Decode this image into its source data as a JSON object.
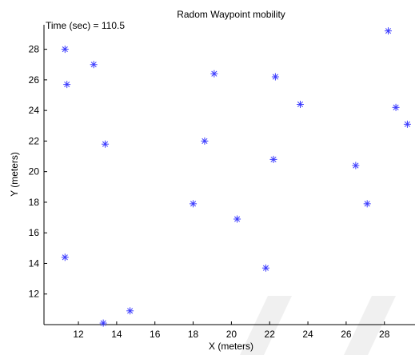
{
  "chart_data": {
    "type": "scatter",
    "title": "Radom Waypoint mobility",
    "annotation": "Time (sec) = 110.5",
    "xlabel": "X (meters)",
    "ylabel": "Y (meters)",
    "xlim": [
      10.2,
      29.6
    ],
    "ylim": [
      10.0,
      29.6
    ],
    "xticks": [
      "12",
      "14",
      "16",
      "18",
      "20",
      "22",
      "24",
      "26",
      "28"
    ],
    "yticks": [
      "12",
      "14",
      "16",
      "18",
      "20",
      "22",
      "24",
      "26",
      "28"
    ],
    "grid": false,
    "marker": "*",
    "marker_color": "#3b3bff",
    "points": [
      {
        "x": 11.3,
        "y": 28.0
      },
      {
        "x": 12.8,
        "y": 27.0
      },
      {
        "x": 11.4,
        "y": 25.7
      },
      {
        "x": 13.4,
        "y": 21.8
      },
      {
        "x": 11.3,
        "y": 14.4
      },
      {
        "x": 13.3,
        "y": 10.1
      },
      {
        "x": 14.7,
        "y": 10.9
      },
      {
        "x": 18.0,
        "y": 17.9
      },
      {
        "x": 18.6,
        "y": 22.0
      },
      {
        "x": 19.1,
        "y": 26.4
      },
      {
        "x": 20.3,
        "y": 16.9
      },
      {
        "x": 21.8,
        "y": 13.7
      },
      {
        "x": 22.2,
        "y": 20.8
      },
      {
        "x": 22.3,
        "y": 26.2
      },
      {
        "x": 23.6,
        "y": 24.4
      },
      {
        "x": 26.5,
        "y": 20.4
      },
      {
        "x": 27.1,
        "y": 17.9
      },
      {
        "x": 28.2,
        "y": 29.2
      },
      {
        "x": 28.6,
        "y": 24.2
      },
      {
        "x": 29.2,
        "y": 23.1
      }
    ]
  }
}
